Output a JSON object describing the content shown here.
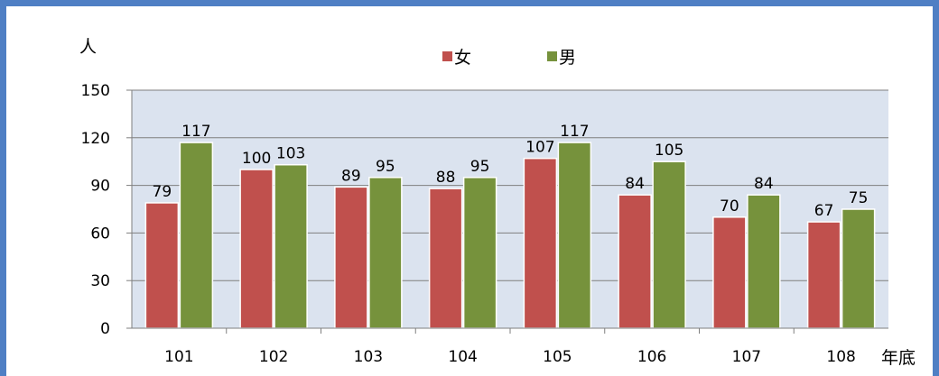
{
  "chart_data": {
    "type": "bar",
    "title": "",
    "xlabel": "年底",
    "ylabel": "人",
    "categories": [
      "101",
      "102",
      "103",
      "104",
      "105",
      "106",
      "107",
      "108"
    ],
    "series": [
      {
        "name": "女",
        "color": "#c0504d",
        "values": [
          79,
          100,
          89,
          88,
          107,
          84,
          70,
          67
        ]
      },
      {
        "name": "男",
        "color": "#76923c",
        "values": [
          117,
          103,
          95,
          95,
          117,
          105,
          84,
          75
        ]
      }
    ],
    "ylim": [
      0,
      150
    ],
    "yticks": [
      "0",
      "30",
      "60",
      "90",
      "120",
      "150"
    ],
    "grid": true,
    "legend": "top-center",
    "plot_background": "#dbe3ef",
    "frame_color": "#4f7fc4"
  }
}
